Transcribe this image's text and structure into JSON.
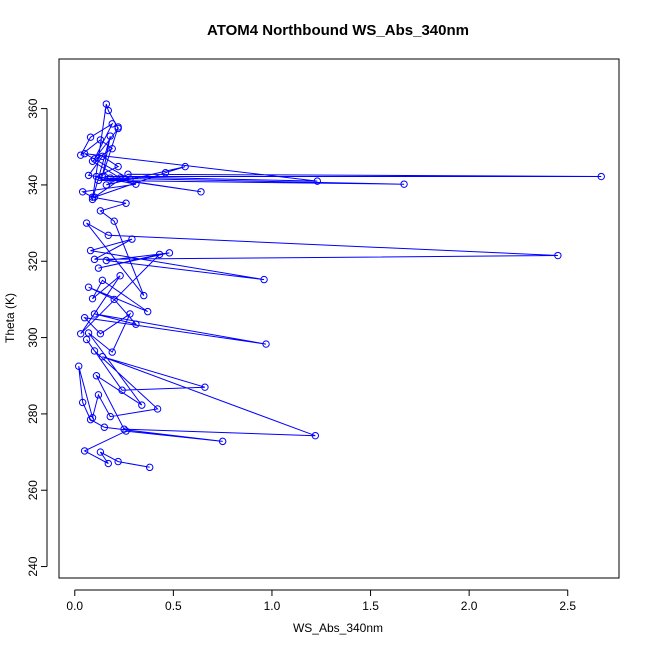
{
  "chart_data": {
    "type": "line",
    "title": "ATOM4 Northbound WS_Abs_340nm",
    "xlabel": "WS_Abs_340nm",
    "ylabel": "Theta (K)",
    "xlim": [
      -0.08,
      2.76
    ],
    "ylim": [
      237,
      373
    ],
    "x_ticks": [
      0.0,
      0.5,
      1.0,
      1.5,
      2.0,
      2.5
    ],
    "x_tick_labels": [
      "0.0",
      "0.5",
      "1.0",
      "1.5",
      "2.0",
      "2.5"
    ],
    "y_ticks": [
      240,
      260,
      280,
      300,
      320,
      340,
      360
    ],
    "y_tick_labels": [
      "240",
      "260",
      "280",
      "300",
      "320",
      "340",
      "360"
    ],
    "grid": false,
    "legend": "none",
    "series_color": "#0000ff",
    "marker": "open-circle",
    "series": [
      {
        "x": [
          0.38,
          0.22,
          0.13,
          0.17,
          0.05,
          0.26,
          0.75,
          0.15,
          0.08,
          0.04,
          0.02,
          0.09,
          0.12,
          0.18,
          0.42,
          0.1,
          0.06,
          0.24,
          0.66,
          0.14,
          1.22,
          0.25,
          0.11,
          0.34,
          0.07,
          0.19,
          0.28,
          0.13,
          0.05,
          0.97,
          0.1,
          0.31,
          0.2,
          0.07,
          0.37,
          0.14,
          0.09,
          0.23,
          0.03,
          0.43,
          0.12,
          0.48,
          0.16,
          0.96,
          0.08,
          0.29,
          0.1,
          2.45,
          0.17,
          0.06,
          0.35,
          0.2,
          0.13,
          0.26,
          0.09,
          0.04,
          0.31,
          0.11,
          0.22,
          0.14,
          0.07,
          0.64,
          0.18,
          1.67,
          0.12,
          0.28,
          0.05,
          1.23,
          0.15,
          2.67,
          0.27,
          0.1,
          0.46,
          0.56,
          0.16,
          0.23,
          0.09,
          0.19,
          0.13,
          0.03,
          0.08,
          0.19,
          0.1,
          0.22,
          0.17,
          0.16,
          0.09,
          0.18,
          0.14,
          0.22
        ],
        "y": [
          266,
          267.5,
          270,
          267,
          270.3,
          275.5,
          272.8,
          276.5,
          278.5,
          283,
          292.5,
          279,
          285,
          279.3,
          281.3,
          296.5,
          299.5,
          286.2,
          287,
          295,
          274.3,
          276,
          290,
          282.3,
          301.2,
          296.2,
          306.2,
          301,
          305.2,
          298.3,
          306.2,
          303.5,
          310,
          313.2,
          306.8,
          315,
          310.2,
          316.2,
          301,
          321.8,
          318.2,
          322.2,
          320.2,
          315.2,
          322.8,
          325.8,
          320.5,
          321.5,
          326.8,
          330,
          311,
          330.5,
          333.2,
          335.2,
          336.8,
          338.2,
          340.2,
          342.2,
          344.8,
          347.5,
          342.5,
          338.2,
          341.8,
          340.2,
          341.2,
          341.5,
          348.2,
          341,
          342.2,
          342.2,
          342.8,
          336.8,
          343.2,
          344.8,
          340,
          341.8,
          346.2,
          349.5,
          351.8,
          347.8,
          352.5,
          356,
          346.8,
          354.8,
          359.5,
          361.2,
          336.2,
          352.8,
          342.2,
          355.2
        ]
      }
    ]
  }
}
